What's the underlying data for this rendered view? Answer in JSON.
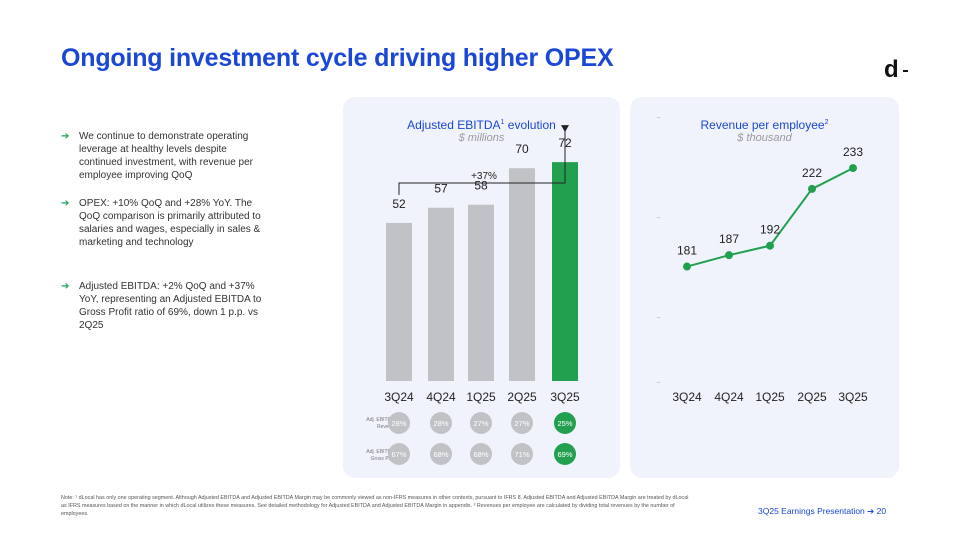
{
  "title": "Ongoing investment cycle driving higher OPEX",
  "logo": "d",
  "bullets": [
    "We continue to demonstrate operating leverage at healthy levels despite continued investment, with revenue per employee improving QoQ",
    "OPEX: +10% QoQ and +28% YoY. The QoQ comparison is primarily attributed to salaries and wages, especially in sales & marketing and technology",
    "Adjusted EBITDA: +2% QoQ and +37% YoY, representing an Adjusted EBITDA to Gross Profit ratio of 69%, down 1 p.p. vs 2Q25"
  ],
  "bullet_arrow": "➔",
  "left_panel": {
    "title": "Adjusted EBITDA",
    "title_sup": "1",
    "title_suffix": " evolution",
    "subtitle": "$ millions",
    "growth_label": "+37%",
    "row1_label": [
      "Adj. EBITDA /",
      "Revenue"
    ],
    "row2_label": [
      "Adj. EBITDA /",
      "Gross Profit"
    ]
  },
  "right_panel": {
    "title": "Revenue per employee",
    "title_sup": "2",
    "subtitle": "$ thousand"
  },
  "chart_data": [
    {
      "type": "bar",
      "title": "Adjusted EBITDA evolution",
      "ylabel": "$ millions",
      "categories": [
        "3Q24",
        "4Q24",
        "1Q25",
        "2Q25",
        "3Q25"
      ],
      "values": [
        52,
        57,
        58,
        70,
        72
      ],
      "ylim": [
        0,
        80
      ],
      "highlight_index": 4,
      "colors": {
        "bar": "#c1c2c6",
        "highlight": "#22a050"
      },
      "ratios": {
        "ebitda_revenue": [
          "28%",
          "28%",
          "27%",
          "27%",
          "25%"
        ],
        "ebitda_gross_profit": [
          "67%",
          "68%",
          "68%",
          "71%",
          "69%"
        ]
      }
    },
    {
      "type": "line",
      "title": "Revenue per employee",
      "ylabel": "$ thousand",
      "categories": [
        "3Q24",
        "4Q24",
        "1Q25",
        "2Q25",
        "3Q25"
      ],
      "values": [
        181,
        187,
        192,
        222,
        233
      ],
      "ylim": [
        120,
        260
      ],
      "colors": {
        "line": "#22a050"
      }
    }
  ],
  "footnote": "Note: ¹ dLocal has only one operating segment. Although Adjusted EBITDA and Adjusted EBITDA Margin may be commonly viewed as non-IFRS measures in other contexts, pursuant to IFRS 8, Adjusted EBITDA and Adjusted EBITDA Margin are treated by dLocal as IFRS measures based on the manner in which dLocal utilizes these measures. See detailed methodology for Adjusted EBITDA and Adjusted EBITDA Margin in appendix. ² Revenues per employee are calculated by dividing total revenues by the number of employees.",
  "page_footer": "3Q25 Earnings Presentation ➔  20"
}
